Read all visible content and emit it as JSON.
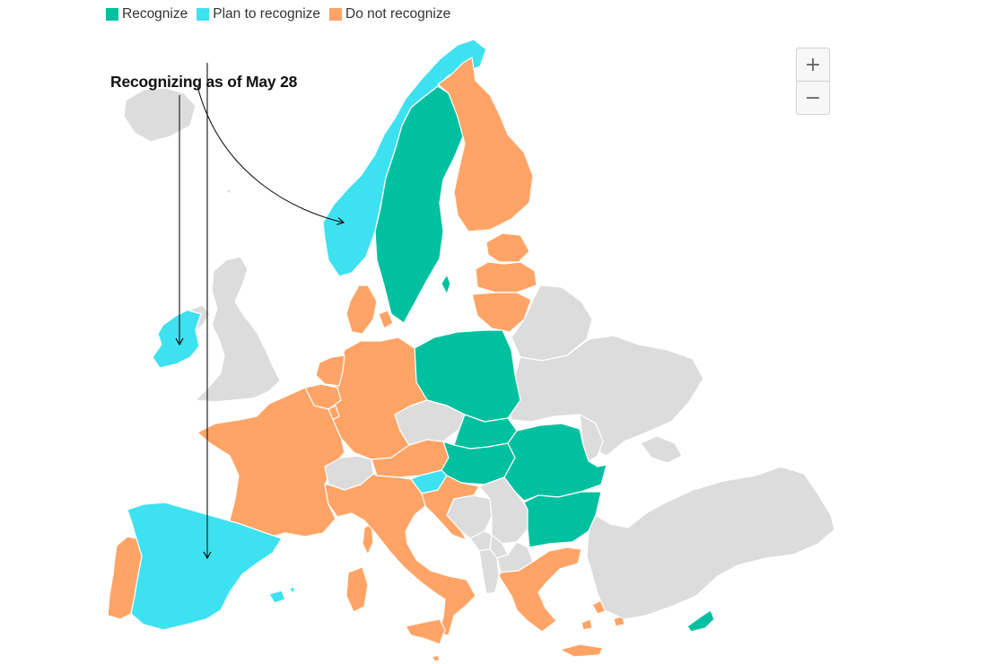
{
  "legend": {
    "items": [
      {
        "label": "Recognize",
        "color": "#00c0a0"
      },
      {
        "label": "Plan to recognize",
        "color": "#3ee1ef"
      },
      {
        "label": "Do not recognize",
        "color": "#ffa466"
      }
    ]
  },
  "annotation": {
    "title": "Recognizing as of May 28"
  },
  "zoom": {
    "in_label": "+",
    "out_label": "−"
  },
  "colors": {
    "recognize": "#00c0a0",
    "plan": "#3ee1ef",
    "not": "#ffa466",
    "none": "#dcdcdc",
    "border": "#ffffff"
  },
  "map": {
    "countries": [
      {
        "name": "Sweden",
        "status": "recognize"
      },
      {
        "name": "Norway",
        "status": "plan"
      },
      {
        "name": "Finland",
        "status": "not"
      },
      {
        "name": "Iceland",
        "status": "none"
      },
      {
        "name": "Ireland",
        "status": "plan"
      },
      {
        "name": "United Kingdom",
        "status": "none"
      },
      {
        "name": "Spain",
        "status": "plan"
      },
      {
        "name": "Portugal",
        "status": "not"
      },
      {
        "name": "France",
        "status": "not"
      },
      {
        "name": "Germany",
        "status": "not"
      },
      {
        "name": "Netherlands",
        "status": "not"
      },
      {
        "name": "Belgium",
        "status": "not"
      },
      {
        "name": "Denmark",
        "status": "not"
      },
      {
        "name": "Poland",
        "status": "recognize"
      },
      {
        "name": "Slovakia",
        "status": "recognize"
      },
      {
        "name": "Hungary",
        "status": "recognize"
      },
      {
        "name": "Romania",
        "status": "recognize"
      },
      {
        "name": "Bulgaria",
        "status": "recognize"
      },
      {
        "name": "Cyprus",
        "status": "recognize"
      },
      {
        "name": "Slovenia",
        "status": "plan"
      },
      {
        "name": "Czechia",
        "status": "none"
      },
      {
        "name": "Austria",
        "status": "not"
      },
      {
        "name": "Switzerland",
        "status": "none"
      },
      {
        "name": "Italy",
        "status": "not"
      },
      {
        "name": "Croatia",
        "status": "not"
      },
      {
        "name": "Greece",
        "status": "not"
      },
      {
        "name": "Estonia",
        "status": "not"
      },
      {
        "name": "Latvia",
        "status": "not"
      },
      {
        "name": "Lithuania",
        "status": "not"
      },
      {
        "name": "Belarus",
        "status": "none"
      },
      {
        "name": "Ukraine",
        "status": "none"
      },
      {
        "name": "Moldova",
        "status": "none"
      },
      {
        "name": "Turkey",
        "status": "none"
      },
      {
        "name": "Serbia",
        "status": "none"
      },
      {
        "name": "Bosnia and Herzegovina",
        "status": "none"
      },
      {
        "name": "Montenegro",
        "status": "none"
      },
      {
        "name": "Albania",
        "status": "none"
      },
      {
        "name": "North Macedonia",
        "status": "none"
      },
      {
        "name": "Kosovo",
        "status": "none"
      },
      {
        "name": "Luxembourg",
        "status": "not"
      },
      {
        "name": "Malta",
        "status": "not"
      }
    ]
  }
}
